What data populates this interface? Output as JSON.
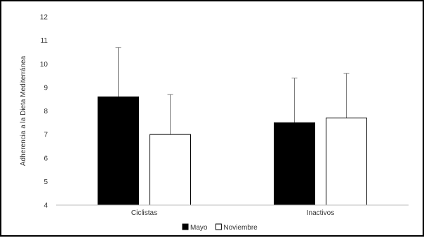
{
  "chart_data": {
    "type": "bar",
    "categories": [
      "Ciclistas",
      "Inactivos"
    ],
    "series": [
      {
        "name": "Mayo",
        "values": [
          8.6,
          7.5
        ],
        "error_upper": [
          10.7,
          9.4
        ],
        "color": "#000000"
      },
      {
        "name": "Noviembre",
        "values": [
          7.0,
          7.7
        ],
        "error_upper": [
          8.7,
          9.6
        ],
        "color": "#ffffff"
      }
    ],
    "ylabel": "Adherencia a la Dieta Mediterránea",
    "ylim": [
      4,
      12
    ],
    "yticks": [
      4,
      5,
      6,
      7,
      8,
      9,
      10,
      11,
      12
    ],
    "grid": false,
    "legend_position": "bottom"
  }
}
